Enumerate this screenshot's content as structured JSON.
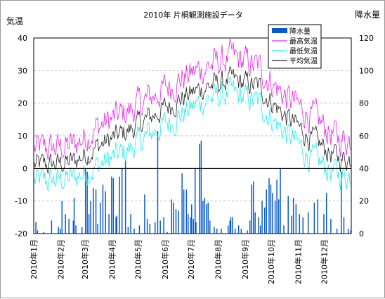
{
  "chart_data": {
    "type": "line",
    "title": "2010年 片桐観測施設データ",
    "y_left_label": "気温",
    "y_right_label": "降水量",
    "y_left_range": [
      -20,
      40
    ],
    "y_left_ticks": [
      -20,
      -10,
      0,
      10,
      20,
      30,
      40
    ],
    "y_right_range": [
      0,
      120
    ],
    "y_right_ticks": [
      0,
      20,
      40,
      60,
      80,
      100,
      120
    ],
    "grid": true,
    "legend_position": "top-right",
    "x_range": [
      "2010-01-01",
      "2010-12-31"
    ],
    "x_tick_labels": [
      "2010年1月",
      "2010年2月",
      "2010年3月",
      "2010年4月",
      "2010年5月",
      "2010年6月",
      "2010年7月",
      "2010年8月",
      "2010年9月",
      "2010年10月",
      "2010年11月",
      "2010年12月"
    ],
    "series": [
      {
        "name": "降水量",
        "kind": "bar",
        "axis": "right",
        "color": "#0a5ccc",
        "points": [
          [
            "1-3",
            7
          ],
          [
            "1-5",
            2
          ],
          [
            "1-12",
            1
          ],
          [
            "1-21",
            8
          ],
          [
            "1-29",
            4
          ],
          [
            "1-31",
            3
          ],
          [
            "2-2",
            20
          ],
          [
            "2-6",
            12
          ],
          [
            "2-10",
            9
          ],
          [
            "2-15",
            8
          ],
          [
            "2-16",
            22
          ],
          [
            "2-18",
            5
          ],
          [
            "2-25",
            4
          ],
          [
            "3-1",
            40
          ],
          [
            "3-3",
            38
          ],
          [
            "3-5",
            12
          ],
          [
            "3-7",
            20
          ],
          [
            "3-10",
            28
          ],
          [
            "3-13",
            27
          ],
          [
            "3-15",
            6
          ],
          [
            "3-18",
            19
          ],
          [
            "3-21",
            30
          ],
          [
            "3-24",
            26
          ],
          [
            "3-28",
            12
          ],
          [
            "3-31",
            35
          ],
          [
            "4-2",
            34
          ],
          [
            "4-5",
            10
          ],
          [
            "4-6",
            11
          ],
          [
            "4-9",
            35
          ],
          [
            "4-12",
            40
          ],
          [
            "4-16",
            45
          ],
          [
            "4-19",
            4
          ],
          [
            "4-22",
            12
          ],
          [
            "4-26",
            3
          ],
          [
            "5-2",
            5
          ],
          [
            "5-8",
            24
          ],
          [
            "5-11",
            9
          ],
          [
            "5-14",
            6
          ],
          [
            "5-20",
            7
          ],
          [
            "5-23",
            63
          ],
          [
            "5-26",
            8
          ],
          [
            "5-30",
            10
          ],
          [
            "6-3",
            1
          ],
          [
            "6-8",
            21
          ],
          [
            "6-10",
            19
          ],
          [
            "6-13",
            15
          ],
          [
            "6-16",
            14
          ],
          [
            "6-20",
            37
          ],
          [
            "6-22",
            27
          ],
          [
            "6-25",
            27
          ],
          [
            "6-27",
            12
          ],
          [
            "6-30",
            10
          ],
          [
            "7-1",
            18
          ],
          [
            "7-3",
            9
          ],
          [
            "7-5",
            40
          ],
          [
            "7-6",
            7
          ],
          [
            "7-10",
            55
          ],
          [
            "7-12",
            57
          ],
          [
            "7-14",
            20
          ],
          [
            "7-16",
            22
          ],
          [
            "7-18",
            18
          ],
          [
            "7-20",
            19
          ],
          [
            "7-22",
            8
          ],
          [
            "7-27",
            4
          ],
          [
            "7-30",
            3
          ],
          [
            "8-4",
            3
          ],
          [
            "8-12",
            5
          ],
          [
            "8-14",
            8
          ],
          [
            "8-15",
            10
          ],
          [
            "8-17",
            10
          ],
          [
            "8-20",
            3
          ],
          [
            "8-24",
            5
          ],
          [
            "8-27",
            3
          ],
          [
            "9-3",
            2
          ],
          [
            "9-6",
            8
          ],
          [
            "9-8",
            30
          ],
          [
            "9-10",
            32
          ],
          [
            "9-12",
            13
          ],
          [
            "9-16",
            10
          ],
          [
            "9-18",
            5
          ],
          [
            "9-20",
            20
          ],
          [
            "9-23",
            16
          ],
          [
            "9-25",
            27
          ],
          [
            "9-28",
            34
          ],
          [
            "9-30",
            30
          ],
          [
            "10-2",
            25
          ],
          [
            "10-5",
            20
          ],
          [
            "10-7",
            33
          ],
          [
            "10-9",
            21
          ],
          [
            "10-11",
            40
          ],
          [
            "10-15",
            5
          ],
          [
            "10-20",
            23
          ],
          [
            "10-24",
            11
          ],
          [
            "10-26",
            22
          ],
          [
            "10-29",
            18
          ],
          [
            "11-2",
            12
          ],
          [
            "11-6",
            10
          ],
          [
            "11-12",
            13
          ],
          [
            "11-19",
            19
          ],
          [
            "11-23",
            21
          ],
          [
            "11-30",
            12
          ],
          [
            "12-3",
            25
          ],
          [
            "12-8",
            9
          ],
          [
            "12-15",
            3
          ],
          [
            "12-20",
            38
          ],
          [
            "12-23",
            10
          ],
          [
            "12-28",
            3
          ],
          [
            "12-31",
            2
          ]
        ]
      },
      {
        "name": "最高気温",
        "kind": "line",
        "axis": "left",
        "color": "#ee22ee",
        "monthly_trend": [
          6,
          7,
          13,
          17,
          22,
          27,
          31,
          34,
          31,
          22,
          16,
          9
        ],
        "variability": 4
      },
      {
        "name": "最低気温",
        "kind": "line",
        "axis": "left",
        "color": "#22eeee",
        "monthly_trend": [
          -4,
          -3,
          1,
          5,
          11,
          16,
          21,
          23,
          20,
          11,
          3,
          -2
        ],
        "variability": 3.5
      },
      {
        "name": "平均気温",
        "kind": "line",
        "axis": "left",
        "color": "#222222",
        "monthly_trend": [
          1,
          2,
          7,
          11,
          16,
          21,
          25,
          27,
          25,
          16,
          9,
          3
        ],
        "variability": 3
      }
    ]
  }
}
